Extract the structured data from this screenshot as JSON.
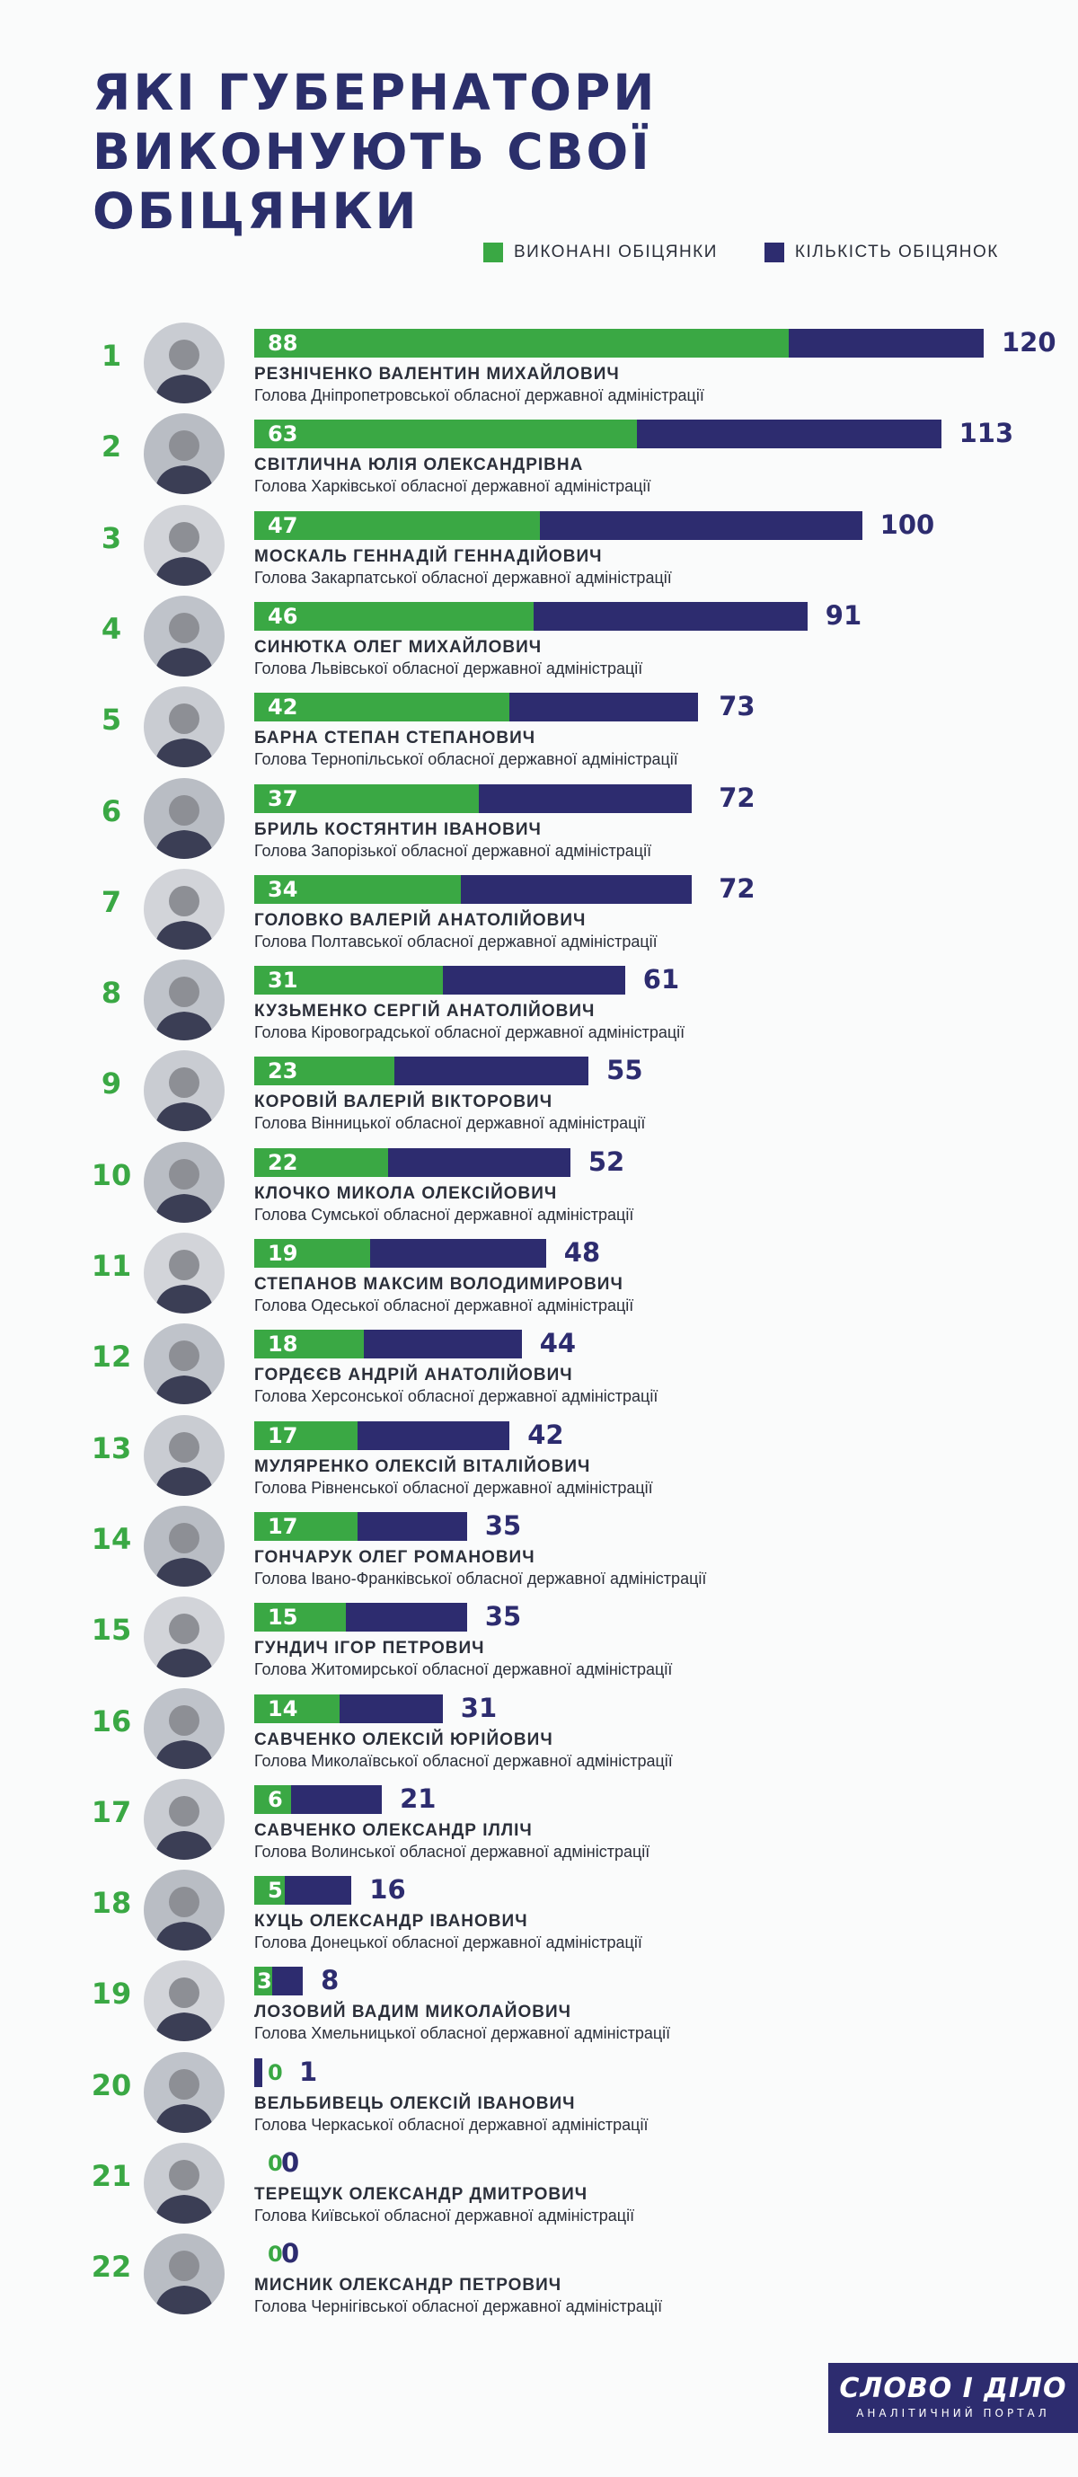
{
  "title": "ЯКІ ГУБЕРНАТОРИ ВИКОНУЮТЬ СВОЇ ОБІЦЯНКИ",
  "legend": {
    "completed_label": "ВИКОНАНІ ОБІЦЯНКИ",
    "total_label": "КІЛЬКІСТЬ ОБІЦЯНОК"
  },
  "colors": {
    "completed": "#3aa844",
    "total": "#2d2c6f",
    "title": "#2b2f6b"
  },
  "chart_data": {
    "type": "bar",
    "orientation": "horizontal",
    "series": [
      {
        "name": "ВИКОНАНІ ОБІЦЯНКИ",
        "values": [
          88,
          63,
          47,
          46,
          42,
          37,
          34,
          31,
          23,
          22,
          19,
          18,
          17,
          17,
          15,
          14,
          6,
          5,
          3,
          0,
          0,
          0
        ]
      },
      {
        "name": "КІЛЬКІСТЬ ОБІЦЯНОК",
        "values": [
          120,
          113,
          100,
          91,
          73,
          72,
          72,
          61,
          55,
          52,
          48,
          44,
          42,
          35,
          35,
          31,
          21,
          16,
          8,
          1,
          0,
          0
        ]
      }
    ],
    "rows": [
      {
        "rank": "1",
        "name": "РЕЗНІЧЕНКО ВАЛЕНТИН МИХАЙЛОВИЧ",
        "position": "Голова Дніпропетровської обласної державної адміністрації",
        "done": 88,
        "total": 120
      },
      {
        "rank": "2",
        "name": "СВІТЛИЧНА ЮЛІЯ ОЛЕКСАНДРІВНА",
        "position": "Голова Харківської обласної державної адміністрації",
        "done": 63,
        "total": 113
      },
      {
        "rank": "3",
        "name": "МОСКАЛЬ ГЕННАДІЙ ГЕННАДІЙОВИЧ",
        "position": "Голова Закарпатської обласної державної адміністрації",
        "done": 47,
        "total": 100
      },
      {
        "rank": "4",
        "name": "СИНЮТКА ОЛЕГ МИХАЙЛОВИЧ",
        "position": "Голова Львівської обласної державної адміністрації",
        "done": 46,
        "total": 91
      },
      {
        "rank": "5",
        "name": "БАРНА СТЕПАН СТЕПАНОВИЧ",
        "position": "Голова Тернопільської обласної державної адміністрації",
        "done": 42,
        "total": 73
      },
      {
        "rank": "6",
        "name": "БРИЛЬ КОСТЯНТИН ІВАНОВИЧ",
        "position": "Голова Запорізької обласної державної адміністрації",
        "done": 37,
        "total": 72
      },
      {
        "rank": "7",
        "name": "ГОЛОВКО ВАЛЕРІЙ АНАТОЛІЙОВИЧ",
        "position": "Голова Полтавської обласної державної адміністрації",
        "done": 34,
        "total": 72
      },
      {
        "rank": "8",
        "name": "КУЗЬМЕНКО СЕРГІЙ АНАТОЛІЙОВИЧ",
        "position": "Голова Кіровоградської обласної державної адміністрації",
        "done": 31,
        "total": 61
      },
      {
        "rank": "9",
        "name": "КОРОВІЙ ВАЛЕРІЙ ВІКТОРОВИЧ",
        "position": "Голова Вінницької обласної державної адміністрації",
        "done": 23,
        "total": 55
      },
      {
        "rank": "10",
        "name": "КЛОЧКО МИКОЛА ОЛЕКСІЙОВИЧ",
        "position": "Голова Сумської обласної державної адміністрації",
        "done": 22,
        "total": 52
      },
      {
        "rank": "11",
        "name": "СТЕПАНОВ МАКСИМ ВОЛОДИМИРОВИЧ",
        "position": "Голова Одеської обласної державної адміністрації",
        "done": 19,
        "total": 48
      },
      {
        "rank": "12",
        "name": "ГОРДЄЄВ АНДРІЙ АНАТОЛІЙОВИЧ",
        "position": "Голова Херсонської обласної державної адміністрації",
        "done": 18,
        "total": 44
      },
      {
        "rank": "13",
        "name": "МУЛЯРЕНКО ОЛЕКСІЙ ВІТАЛІЙОВИЧ",
        "position": "Голова Рівненської обласної державної адміністрації",
        "done": 17,
        "total": 42
      },
      {
        "rank": "14",
        "name": "ГОНЧАРУК ОЛЕГ РОМАНОВИЧ",
        "position": "Голова Івано-Франківської обласної державної адміністрації",
        "done": 17,
        "total": 35
      },
      {
        "rank": "15",
        "name": "ГУНДИЧ ІГОР ПЕТРОВИЧ",
        "position": "Голова Житомирської обласної державної адміністрації",
        "done": 15,
        "total": 35
      },
      {
        "rank": "16",
        "name": "САВЧЕНКО ОЛЕКСІЙ ЮРІЙОВИЧ",
        "position": "Голова Миколаївської обласної державної адміністрації",
        "done": 14,
        "total": 31
      },
      {
        "rank": "17",
        "name": "САВЧЕНКО ОЛЕКСАНДР ІЛЛІЧ",
        "position": "Голова Волинської обласної державної адміністрації",
        "done": 6,
        "total": 21
      },
      {
        "rank": "18",
        "name": "КУЦЬ ОЛЕКСАНДР ІВАНОВИЧ",
        "position": "Голова Донецької обласної державної адміністрації",
        "done": 5,
        "total": 16
      },
      {
        "rank": "19",
        "name": "ЛОЗОВИЙ ВАДИМ МИКОЛАЙОВИЧ",
        "position": "Голова Хмельницької обласної державної адміністрації",
        "done": 3,
        "total": 8
      },
      {
        "rank": "20",
        "name": "ВЕЛЬБИВЕЦЬ ОЛЕКСІЙ ІВАНОВИЧ",
        "position": "Голова Черкаської обласної державної адміністрації",
        "done": 0,
        "total": 1
      },
      {
        "rank": "21",
        "name": "ТЕРЕЩУК ОЛЕКСАНДР ДМИТРОВИЧ",
        "position": "Голова Київської обласної державної адміністрації",
        "done": 0,
        "total": 0
      },
      {
        "rank": "22",
        "name": "МИСНИК ОЛЕКСАНДР ПЕТРОВИЧ",
        "position": "Голова Чернігівської обласної державної адміністрації",
        "done": 0,
        "total": 0
      }
    ],
    "legend_position": "top-right",
    "grid": false
  },
  "logo": {
    "main": "СЛОВО І ДІЛО",
    "sub": "АНАЛІТИЧНИЙ ПОРТАЛ"
  }
}
